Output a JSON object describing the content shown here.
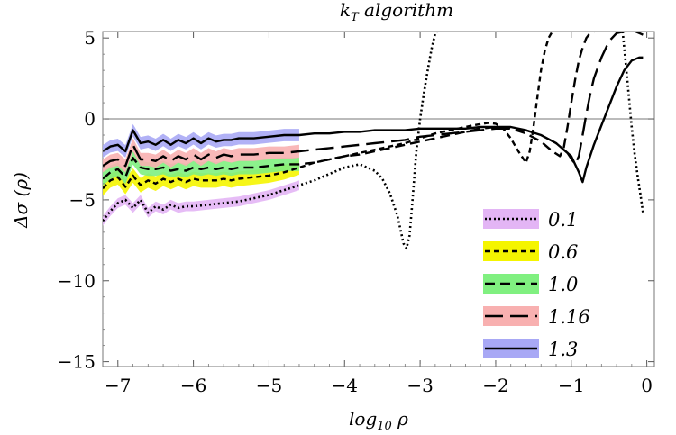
{
  "chart_data": {
    "type": "line",
    "title_main": "k",
    "title_sub": "T",
    "title_rest": " algorithm",
    "xlabel_main": "log",
    "xlabel_sub": "10",
    "xlabel_rest": " ρ",
    "ylabel": "Δσ (ρ)",
    "xlim": [
      -7.2,
      0.1
    ],
    "ylim": [
      -15.3,
      5.4
    ],
    "x_ticks": [
      -7,
      -6,
      -5,
      -4,
      -3,
      -2,
      -1,
      0
    ],
    "x_tick_labels": [
      "−7",
      "−6",
      "−5",
      "−4",
      "−3",
      "−2",
      "−1",
      "0"
    ],
    "y_ticks": [
      5,
      0,
      -5,
      -10,
      -15
    ],
    "y_tick_labels": [
      "5",
      "0",
      "−5",
      "−10",
      "−15"
    ],
    "grid": false,
    "legend_position": "bottom-right",
    "series": [
      {
        "name": "0.1",
        "line_color": "#000000",
        "band_color": "#e3b5f5",
        "dash": "dotted",
        "band_halfwidth": 0.3,
        "x": [
          -7.2,
          -7.1,
          -7.0,
          -6.9,
          -6.8,
          -6.7,
          -6.6,
          -6.5,
          -6.4,
          -6.3,
          -6.2,
          -6.1,
          -6.0,
          -5.8,
          -5.6,
          -5.4,
          -5.2,
          -5.0,
          -4.8,
          -4.6,
          -4.4,
          -4.2,
          -4.0,
          -3.8,
          -3.6,
          -3.5,
          -3.4,
          -3.3,
          -3.22,
          -3.18,
          -3.14,
          -3.1,
          -3.05,
          -3.0,
          -2.95,
          -2.9,
          -2.85,
          -2.8,
          -2.78
        ],
        "values": [
          -6.3,
          -5.7,
          -5.2,
          -5.0,
          -5.5,
          -5.0,
          -5.8,
          -5.4,
          -5.6,
          -5.3,
          -5.5,
          -5.4,
          -5.4,
          -5.3,
          -5.2,
          -5.1,
          -4.9,
          -4.7,
          -4.4,
          -4.1,
          -3.8,
          -3.4,
          -3.0,
          -2.8,
          -3.2,
          -3.7,
          -4.6,
          -6.0,
          -7.7,
          -8.0,
          -7.2,
          -5.0,
          -2.0,
          0.0,
          1.6,
          3.0,
          4.3,
          5.3,
          5.4
        ]
      },
      {
        "name": "0.1-tail",
        "line_color": "#000000",
        "dash": "dotted",
        "x": [
          -0.32,
          -0.28,
          -0.24,
          -0.2,
          -0.16,
          -0.12,
          -0.08,
          -0.05
        ],
        "values": [
          5.4,
          3.5,
          1.5,
          -0.5,
          -2.2,
          -3.6,
          -4.8,
          -5.8
        ]
      },
      {
        "name": "0.6",
        "line_color": "#000000",
        "band_color": "#f5f500",
        "dash": "short",
        "band_halfwidth": 0.45,
        "x": [
          -7.2,
          -7.1,
          -7.0,
          -6.9,
          -6.8,
          -6.7,
          -6.6,
          -6.5,
          -6.4,
          -6.3,
          -6.2,
          -6.1,
          -6.0,
          -5.9,
          -5.8,
          -5.7,
          -5.6,
          -5.5,
          -5.4,
          -5.2,
          -5.0,
          -4.8,
          -4.6,
          -4.4,
          -4.2,
          -4.0,
          -3.8,
          -3.5,
          -3.2,
          -3.0,
          -2.8,
          -2.5,
          -2.3,
          -2.1,
          -2.0,
          -1.9,
          -1.8,
          -1.7,
          -1.6,
          -1.55,
          -1.5,
          -1.45,
          -1.4,
          -1.35,
          -1.3,
          -1.25,
          -1.2
        ],
        "values": [
          -4.3,
          -3.8,
          -3.6,
          -4.2,
          -3.5,
          -4.1,
          -3.8,
          -4.0,
          -3.7,
          -3.9,
          -3.7,
          -3.9,
          -3.7,
          -3.8,
          -3.8,
          -3.8,
          -3.7,
          -3.8,
          -3.7,
          -3.6,
          -3.5,
          -3.3,
          -3.0,
          -2.7,
          -2.5,
          -2.3,
          -2.1,
          -1.8,
          -1.5,
          -1.2,
          -0.9,
          -0.6,
          -0.4,
          -0.25,
          -0.3,
          -0.6,
          -1.2,
          -2.0,
          -2.7,
          -2.0,
          -0.5,
          1.3,
          3.0,
          4.2,
          5.0,
          5.4,
          5.5
        ]
      },
      {
        "name": "1.0",
        "line_color": "#000000",
        "band_color": "#80f080",
        "dash": "medium",
        "band_halfwidth": 0.42,
        "x": [
          -7.2,
          -7.1,
          -7.0,
          -6.9,
          -6.8,
          -6.7,
          -6.6,
          -6.5,
          -6.4,
          -6.3,
          -6.2,
          -6.1,
          -6.0,
          -5.9,
          -5.8,
          -5.7,
          -5.6,
          -5.5,
          -5.4,
          -5.2,
          -5.0,
          -4.8,
          -4.6,
          -4.4,
          -4.2,
          -4.0,
          -3.8,
          -3.6,
          -3.4,
          -3.2,
          -3.0,
          -2.8,
          -2.6,
          -2.4,
          -2.2,
          -2.0,
          -1.8,
          -1.6,
          -1.4,
          -1.25,
          -1.15,
          -1.1,
          -1.05,
          -1.0,
          -0.95,
          -0.9,
          -0.85,
          -0.8,
          -0.75,
          -0.7
        ],
        "values": [
          -3.7,
          -3.3,
          -3.1,
          -3.6,
          -2.4,
          -3.0,
          -3.1,
          -3.1,
          -3.0,
          -3.2,
          -3.1,
          -3.2,
          -3.0,
          -3.1,
          -3.0,
          -3.1,
          -3.0,
          -3.1,
          -3.0,
          -3.0,
          -2.9,
          -2.8,
          -2.8,
          -2.7,
          -2.5,
          -2.3,
          -2.2,
          -2.0,
          -1.8,
          -1.6,
          -1.4,
          -1.2,
          -1.0,
          -0.8,
          -0.6,
          -0.5,
          -0.6,
          -0.9,
          -1.4,
          -2.0,
          -2.3,
          -1.8,
          -0.5,
          1.0,
          2.4,
          3.6,
          4.4,
          5.0,
          5.3,
          5.4
        ]
      },
      {
        "name": "1.16",
        "line_color": "#000000",
        "band_color": "#f8b0b0",
        "dash": "long",
        "band_halfwidth": 0.4,
        "x": [
          -7.2,
          -7.1,
          -7.0,
          -6.9,
          -6.8,
          -6.7,
          -6.6,
          -6.5,
          -6.4,
          -6.3,
          -6.2,
          -6.1,
          -6.0,
          -5.9,
          -5.8,
          -5.7,
          -5.6,
          -5.5,
          -5.4,
          -5.2,
          -5.0,
          -4.8,
          -4.6,
          -4.4,
          -4.2,
          -4.0,
          -3.8,
          -3.6,
          -3.4,
          -3.2,
          -3.0,
          -2.8,
          -2.6,
          -2.4,
          -2.2,
          -2.0,
          -1.8,
          -1.6,
          -1.4,
          -1.2,
          -1.05,
          -0.95,
          -0.9,
          -0.85,
          -0.8,
          -0.75,
          -0.7,
          -0.6,
          -0.5,
          -0.4,
          -0.3,
          -0.2,
          -0.1,
          -0.05
        ],
        "values": [
          -2.9,
          -2.6,
          -2.5,
          -2.9,
          -1.6,
          -2.5,
          -2.5,
          -2.6,
          -2.3,
          -2.6,
          -2.3,
          -2.5,
          -2.2,
          -2.5,
          -2.2,
          -2.4,
          -2.2,
          -2.3,
          -2.2,
          -2.2,
          -2.1,
          -2.1,
          -2.0,
          -1.9,
          -1.8,
          -1.7,
          -1.6,
          -1.5,
          -1.4,
          -1.3,
          -1.1,
          -1.0,
          -0.9,
          -0.8,
          -0.7,
          -0.6,
          -0.6,
          -0.7,
          -1.0,
          -1.5,
          -2.1,
          -2.8,
          -2.3,
          -1.0,
          0.3,
          1.5,
          2.5,
          3.8,
          4.8,
          5.3,
          5.4,
          5.5,
          5.3,
          5.2
        ]
      },
      {
        "name": "1.3",
        "line_color": "#000000",
        "band_color": "#a8a8f5",
        "dash": "solid",
        "band_halfwidth": 0.38,
        "x": [
          -7.2,
          -7.1,
          -7.0,
          -6.9,
          -6.8,
          -6.7,
          -6.6,
          -6.5,
          -6.4,
          -6.3,
          -6.2,
          -6.1,
          -6.0,
          -5.9,
          -5.8,
          -5.7,
          -5.6,
          -5.5,
          -5.4,
          -5.2,
          -5.0,
          -4.8,
          -4.6,
          -4.4,
          -4.2,
          -4.0,
          -3.8,
          -3.6,
          -3.4,
          -3.2,
          -3.0,
          -2.8,
          -2.6,
          -2.4,
          -2.2,
          -2.0,
          -1.8,
          -1.6,
          -1.4,
          -1.2,
          -1.0,
          -0.9,
          -0.85,
          -0.8,
          -0.7,
          -0.6,
          -0.5,
          -0.4,
          -0.3,
          -0.2,
          -0.1,
          -0.05
        ],
        "values": [
          -2.0,
          -1.7,
          -1.6,
          -2.0,
          -0.7,
          -1.5,
          -1.4,
          -1.6,
          -1.3,
          -1.6,
          -1.3,
          -1.5,
          -1.2,
          -1.5,
          -1.2,
          -1.4,
          -1.3,
          -1.3,
          -1.2,
          -1.2,
          -1.1,
          -1.0,
          -1.0,
          -0.9,
          -0.9,
          -0.8,
          -0.8,
          -0.7,
          -0.7,
          -0.7,
          -0.6,
          -0.6,
          -0.6,
          -0.6,
          -0.5,
          -0.5,
          -0.5,
          -0.7,
          -1.0,
          -1.5,
          -2.3,
          -3.3,
          -3.9,
          -3.0,
          -1.6,
          -0.4,
          0.8,
          2.0,
          3.0,
          3.6,
          3.8,
          3.8
        ]
      }
    ]
  }
}
